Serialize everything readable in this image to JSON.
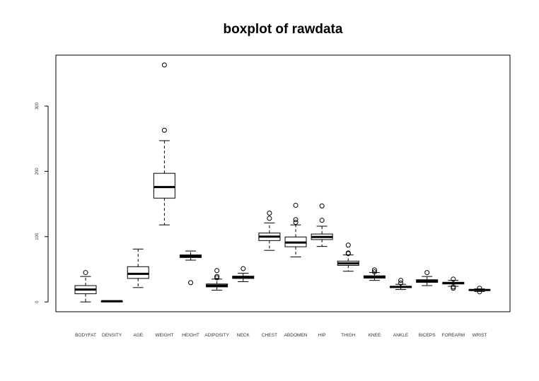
{
  "chart_data": {
    "type": "boxplot",
    "title": "boxplot of rawdata",
    "xlabel": "",
    "ylabel": "",
    "ylim": [
      -15,
      378
    ],
    "yticks": [
      0,
      100,
      200,
      300
    ],
    "grid": false,
    "categories": [
      "BODYFAT",
      "DENSITY",
      "AGE",
      "WEIGHT",
      "HEIGHT",
      "ADIPOSITY",
      "NECK",
      "CHEST",
      "ABDOMEN",
      "HIP",
      "THIGH",
      "KNEE",
      "ANKLE",
      "BICEPS",
      "FOREARM",
      "WRIST"
    ],
    "boxes": [
      {
        "min": 0,
        "q1": 12.5,
        "median": 19,
        "q3": 25,
        "max": 39,
        "outliers": [
          45
        ]
      },
      {
        "min": 1.0,
        "q1": 1.04,
        "median": 1.055,
        "q3": 1.07,
        "max": 1.11,
        "outliers": []
      },
      {
        "min": 22,
        "q1": 36,
        "median": 43,
        "q3": 54,
        "max": 81,
        "outliers": []
      },
      {
        "min": 118,
        "q1": 159,
        "median": 176,
        "q3": 197,
        "max": 247,
        "outliers": [
          263,
          363
        ]
      },
      {
        "min": 64,
        "q1": 68,
        "median": 70,
        "q3": 72,
        "max": 78,
        "outliers": [
          29.5
        ]
      },
      {
        "min": 18,
        "q1": 23,
        "median": 25,
        "q3": 27.5,
        "max": 35,
        "outliers": [
          37,
          39,
          48
        ]
      },
      {
        "min": 31,
        "q1": 36,
        "median": 38,
        "q3": 39.5,
        "max": 44,
        "outliers": [
          51
        ]
      },
      {
        "min": 79,
        "q1": 94,
        "median": 100,
        "q3": 105.5,
        "max": 121,
        "outliers": [
          128,
          136
        ]
      },
      {
        "min": 69,
        "q1": 84.5,
        "median": 91,
        "q3": 99.5,
        "max": 118,
        "outliers": [
          122,
          126,
          148
        ]
      },
      {
        "min": 85,
        "q1": 95.5,
        "median": 99.5,
        "q3": 104,
        "max": 116,
        "outliers": [
          125,
          147
        ]
      },
      {
        "min": 47,
        "q1": 56,
        "median": 59,
        "q3": 62.5,
        "max": 72,
        "outliers": [
          74,
          75,
          87
        ]
      },
      {
        "min": 33,
        "q1": 36.5,
        "median": 38.5,
        "q3": 40,
        "max": 45,
        "outliers": [
          46,
          49
        ]
      },
      {
        "min": 19,
        "q1": 22,
        "median": 23,
        "q3": 24,
        "max": 27,
        "outliers": [
          29,
          33
        ]
      },
      {
        "min": 25,
        "q1": 30,
        "median": 32,
        "q3": 34,
        "max": 39,
        "outliers": [
          45
        ]
      },
      {
        "min": 24,
        "q1": 27.5,
        "median": 29,
        "q3": 30,
        "max": 33,
        "outliers": [
          21,
          23,
          35
        ]
      },
      {
        "min": 16,
        "q1": 17.5,
        "median": 18.3,
        "q3": 18.8,
        "max": 20,
        "outliers": [
          15.5,
          21
        ]
      }
    ]
  }
}
